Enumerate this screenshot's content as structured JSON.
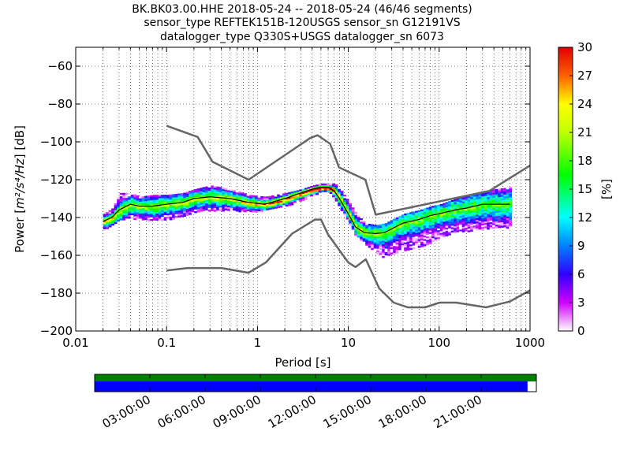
{
  "title_lines": [
    "BK.BK03.00.HHE   2018-05-24 -- 2018-05-24  (46/46 segments)",
    "sensor_type REFTEK151B-120USGS sensor_sn G12191VS",
    "datalogger_type Q330S+USGS datalogger_sn 6073"
  ],
  "colors": {
    "noise_model": "#666666",
    "mode_line": "#000000",
    "coverage_top": "#008000",
    "coverage_bottom": "#0000ff"
  },
  "chart_data": {
    "type": "heatmap",
    "xlabel": "Period [s]",
    "ylabel_prefix": "Power [",
    "ylabel_units": "m²/s⁴/Hz",
    "ylabel_suffix": "] [dB]",
    "x_scale": "log",
    "xlim": [
      0.01,
      1000
    ],
    "ylim": [
      -200,
      -50
    ],
    "x_ticks": [
      {
        "value": 0.01,
        "label": "0.01"
      },
      {
        "value": 0.1,
        "label": "0.1"
      },
      {
        "value": 1,
        "label": "1"
      },
      {
        "value": 10,
        "label": "10"
      },
      {
        "value": 100,
        "label": "100"
      },
      {
        "value": 1000,
        "label": "1000"
      }
    ],
    "y_ticks": [
      {
        "value": -60,
        "label": "−60"
      },
      {
        "value": -80,
        "label": "−80"
      },
      {
        "value": -100,
        "label": "−100"
      },
      {
        "value": -120,
        "label": "−120"
      },
      {
        "value": -140,
        "label": "−140"
      },
      {
        "value": -160,
        "label": "−160"
      },
      {
        "value": -180,
        "label": "−180"
      },
      {
        "value": -200,
        "label": "−200"
      }
    ],
    "grid": true,
    "colorbar": {
      "label": "[%]",
      "range": [
        0,
        30
      ],
      "ticks": [
        {
          "value": 0,
          "label": "0"
        },
        {
          "value": 3,
          "label": "3"
        },
        {
          "value": 6,
          "label": "6"
        },
        {
          "value": 9,
          "label": "9"
        },
        {
          "value": 12,
          "label": "12"
        },
        {
          "value": 15,
          "label": "15"
        },
        {
          "value": 18,
          "label": "18"
        },
        {
          "value": 21,
          "label": "21"
        },
        {
          "value": 24,
          "label": "24"
        },
        {
          "value": 27,
          "label": "27"
        },
        {
          "value": 30,
          "label": "30"
        }
      ]
    },
    "high_noise_model": {
      "x": [
        0.1,
        0.22,
        0.32,
        0.8,
        3.8,
        4.6,
        6.3,
        7.9,
        15.4,
        20,
        354.8,
        1000
      ],
      "y": [
        -91.5,
        -97.4,
        -110.5,
        -120,
        -98,
        -96.5,
        -101,
        -113.5,
        -120,
        -138.5,
        -126,
        -112.5
      ]
    },
    "low_noise_model": {
      "x": [
        0.1,
        0.17,
        0.4,
        0.8,
        1.24,
        2.4,
        4.3,
        5,
        6,
        10,
        12,
        15.6,
        21.9,
        31.6,
        45,
        70,
        101,
        154,
        328,
        600,
        1000
      ],
      "y": [
        -168,
        -166.7,
        -166.7,
        -169.2,
        -163.7,
        -148.6,
        -141.1,
        -141.1,
        -149,
        -163.8,
        -166.2,
        -162.1,
        -177.5,
        -185,
        -187.5,
        -187.5,
        -185,
        -185,
        -187.5,
        -184.4,
        -178.5
      ]
    },
    "mode_line": {
      "x": [
        0.02,
        0.025,
        0.03,
        0.04,
        0.05,
        0.07,
        0.1,
        0.15,
        0.2,
        0.3,
        0.5,
        0.8,
        1.2,
        2,
        3,
        4,
        5,
        6,
        7,
        8,
        10,
        12,
        15,
        20,
        25,
        30,
        40,
        60,
        80,
        100,
        150,
        200,
        300,
        400,
        600
      ],
      "y": [
        -142,
        -140,
        -136,
        -133,
        -134,
        -134,
        -133,
        -132,
        -130,
        -129,
        -130,
        -132,
        -133,
        -130,
        -127,
        -125,
        -124,
        -124,
        -126,
        -130,
        -138,
        -145,
        -148,
        -148.5,
        -148,
        -146,
        -143,
        -141,
        -139,
        -138,
        -136,
        -135,
        -133,
        -133,
        -133
      ]
    },
    "psd_envelope": {
      "x": [
        0.02,
        0.025,
        0.03,
        0.04,
        0.05,
        0.07,
        0.1,
        0.15,
        0.2,
        0.3,
        0.5,
        0.8,
        1.2,
        2,
        3,
        4,
        5,
        6,
        7,
        8,
        10,
        12,
        15,
        20,
        25,
        30,
        40,
        60,
        80,
        100,
        150,
        200,
        300,
        400,
        600
      ],
      "upper": [
        -138,
        -135,
        -127,
        -127,
        -129,
        -128,
        -128,
        -127,
        -125,
        -123,
        -125,
        -128,
        -129,
        -127,
        -125,
        -123,
        -122,
        -122,
        -122,
        -125,
        -132,
        -138,
        -143,
        -144,
        -143,
        -141,
        -138,
        -136,
        -134,
        -133,
        -130,
        -128,
        -126,
        -125,
        -124
      ],
      "lower": [
        -146,
        -144,
        -141,
        -140,
        -141,
        -141,
        -141,
        -139,
        -137,
        -136,
        -136,
        -137,
        -136,
        -134,
        -131,
        -128,
        -126,
        -126,
        -130,
        -135,
        -143,
        -150,
        -154,
        -159,
        -161,
        -159,
        -157,
        -155,
        -153,
        -150,
        -148,
        -147,
        -146,
        -145,
        -145
      ]
    }
  },
  "coverage_axis": {
    "tick_labels": [
      "03:00:00",
      "06:00:00",
      "09:00:00",
      "12:00:00",
      "15:00:00",
      "18:00:00",
      "21:00:00"
    ],
    "green_fraction": 1.0,
    "blue_fraction": 0.98
  }
}
